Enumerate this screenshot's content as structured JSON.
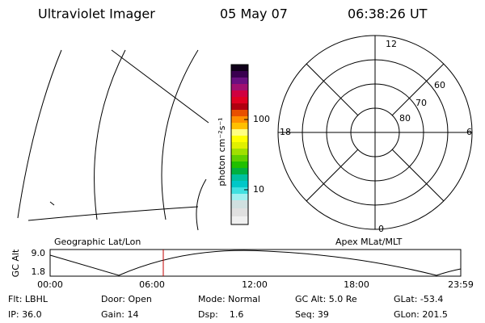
{
  "header": {
    "title": "Ultraviolet Imager",
    "date": "05 May 07",
    "time": "06:38:26 UT"
  },
  "colorbar": {
    "label": "photon cm⁻²s⁻¹",
    "ticks": [
      "100",
      "10"
    ]
  },
  "polar": {
    "mlt_labels": [
      "12",
      "6",
      "18",
      "0"
    ],
    "mlat_labels": [
      "80",
      "70",
      "60"
    ]
  },
  "timeline": {
    "left_title": "Geographic Lat/Lon",
    "right_title": "Apex MLat/MLT",
    "y_label": "GC Alt",
    "y_labels": [
      "9.0",
      "1.8"
    ],
    "x_labels": [
      "00:00",
      "06:00",
      "12:00",
      "18:00",
      "23:59"
    ]
  },
  "status": [
    [
      "Flt: LBHL",
      "Door: Open",
      "Mode: Normal",
      "GC Alt: 5.0 Re",
      "GLat: -53.4"
    ],
    [
      "IP: 36.0",
      "Gain: 14",
      "Dsp:    1.6",
      "Seq: 39",
      "GLon: 201.5"
    ]
  ]
}
